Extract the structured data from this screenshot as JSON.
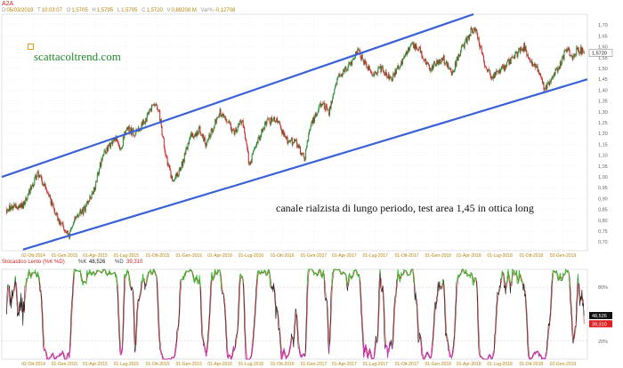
{
  "header": {
    "ticker": "A2A",
    "fields": [
      {
        "key": "D",
        "value": "05/03/2019"
      },
      {
        "key": "T",
        "value": "10:03:07"
      },
      {
        "key": "O",
        "value": "1,5705"
      },
      {
        "key": "H",
        "value": "1,5795"
      },
      {
        "key": "L",
        "value": "1,5705"
      },
      {
        "key": "C",
        "value": "1,5720"
      },
      {
        "key": "V",
        "value": "0,88208 M"
      },
      {
        "key": "Var%",
        "value": "-0,12708"
      }
    ]
  },
  "watermark": "scattacoltrend.com",
  "annotation": "canale rialzista di lungo periodo, test area 1,45 in ottica long",
  "colors": {
    "channel": "#3a62d6",
    "candle_up": "#1e8a2e",
    "candle_down": "#cc2222",
    "osc_k": "#111111",
    "osc_d": "#d22020",
    "osc_overbought": "#22cc22",
    "osc_oversold": "#cc22cc",
    "price_tag": "#ffffff",
    "k_tag": "#111111",
    "d_tag": "#dd2222"
  },
  "chart_data": [
    {
      "type": "line",
      "subtype": "candlestick",
      "ylim": [
        0.66,
        1.75
      ],
      "y_ticks": [
        "1,70",
        "1,65",
        "1,60",
        "1,55",
        "1,50",
        "1,45",
        "1,40",
        "1,35",
        "1,30",
        "1,25",
        "1,20",
        "1,15",
        "1,10",
        "1,05",
        "1,00",
        "0,95",
        "0,90",
        "0,85",
        "0,80",
        "0,75",
        "0,70"
      ],
      "x_ticks": [
        "02-Ott-2014",
        "01-Gen-2015",
        "01-Apr-2015",
        "01-Lug-2015",
        "01-Ott-2015",
        "01-Gen-2016",
        "01-Apr-2016",
        "01-Lug-2016",
        "01-Ott-2016",
        "01-Gen-2017",
        "01-Apr-2017",
        "01-Lug-2017",
        "01-Ott-2017",
        "01-Gen-2018",
        "01-Apr-2018",
        "01-Lug-2018",
        "01-Ott-2018",
        "02-Gen-2019"
      ],
      "price_path": [
        {
          "date": "2014-07-15",
          "value": 0.85
        },
        {
          "date": "2014-09-01",
          "value": 0.87
        },
        {
          "date": "2014-10-15",
          "value": 1.02
        },
        {
          "date": "2014-11-05",
          "value": 0.95
        },
        {
          "date": "2014-12-15",
          "value": 0.8
        },
        {
          "date": "2015-01-15",
          "value": 0.72
        },
        {
          "date": "2015-02-01",
          "value": 0.82
        },
        {
          "date": "2015-03-01",
          "value": 0.85
        },
        {
          "date": "2015-04-01",
          "value": 0.96
        },
        {
          "date": "2015-04-20",
          "value": 1.08
        },
        {
          "date": "2015-05-15",
          "value": 1.15
        },
        {
          "date": "2015-06-01",
          "value": 1.18
        },
        {
          "date": "2015-06-15",
          "value": 1.13
        },
        {
          "date": "2015-07-01",
          "value": 1.22
        },
        {
          "date": "2015-08-01",
          "value": 1.2
        },
        {
          "date": "2015-09-01",
          "value": 1.28
        },
        {
          "date": "2015-09-20",
          "value": 1.34
        },
        {
          "date": "2015-10-05",
          "value": 1.3
        },
        {
          "date": "2015-10-25",
          "value": 1.1
        },
        {
          "date": "2015-11-15",
          "value": 0.97
        },
        {
          "date": "2015-12-10",
          "value": 1.05
        },
        {
          "date": "2016-01-05",
          "value": 1.18
        },
        {
          "date": "2016-02-01",
          "value": 1.22
        },
        {
          "date": "2016-02-20",
          "value": 1.15
        },
        {
          "date": "2016-03-10",
          "value": 1.22
        },
        {
          "date": "2016-04-01",
          "value": 1.3
        },
        {
          "date": "2016-04-25",
          "value": 1.25
        },
        {
          "date": "2016-05-15",
          "value": 1.2
        },
        {
          "date": "2016-06-05",
          "value": 1.27
        },
        {
          "date": "2016-06-27",
          "value": 1.05
        },
        {
          "date": "2016-07-15",
          "value": 1.15
        },
        {
          "date": "2016-08-15",
          "value": 1.25
        },
        {
          "date": "2016-09-15",
          "value": 1.27
        },
        {
          "date": "2016-10-10",
          "value": 1.17
        },
        {
          "date": "2016-11-10",
          "value": 1.16
        },
        {
          "date": "2016-12-05",
          "value": 1.08
        },
        {
          "date": "2016-12-20",
          "value": 1.22
        },
        {
          "date": "2017-01-10",
          "value": 1.3
        },
        {
          "date": "2017-01-25",
          "value": 1.34
        },
        {
          "date": "2017-02-15",
          "value": 1.3
        },
        {
          "date": "2017-03-10",
          "value": 1.45
        },
        {
          "date": "2017-04-10",
          "value": 1.5
        },
        {
          "date": "2017-05-10",
          "value": 1.58
        },
        {
          "date": "2017-06-01",
          "value": 1.52
        },
        {
          "date": "2017-06-25",
          "value": 1.47
        },
        {
          "date": "2017-07-20",
          "value": 1.5
        },
        {
          "date": "2017-08-15",
          "value": 1.45
        },
        {
          "date": "2017-09-15",
          "value": 1.52
        },
        {
          "date": "2017-10-15",
          "value": 1.62
        },
        {
          "date": "2017-11-10",
          "value": 1.58
        },
        {
          "date": "2017-12-05",
          "value": 1.5
        },
        {
          "date": "2017-12-25",
          "value": 1.52
        },
        {
          "date": "2018-01-15",
          "value": 1.55
        },
        {
          "date": "2018-02-10",
          "value": 1.48
        },
        {
          "date": "2018-03-10",
          "value": 1.58
        },
        {
          "date": "2018-04-10",
          "value": 1.68
        },
        {
          "date": "2018-04-25",
          "value": 1.66
        },
        {
          "date": "2018-05-20",
          "value": 1.5
        },
        {
          "date": "2018-06-10",
          "value": 1.46
        },
        {
          "date": "2018-07-10",
          "value": 1.5
        },
        {
          "date": "2018-08-10",
          "value": 1.55
        },
        {
          "date": "2018-09-10",
          "value": 1.6
        },
        {
          "date": "2018-10-01",
          "value": 1.52
        },
        {
          "date": "2018-10-20",
          "value": 1.5
        },
        {
          "date": "2018-11-10",
          "value": 1.4
        },
        {
          "date": "2018-12-05",
          "value": 1.47
        },
        {
          "date": "2018-12-25",
          "value": 1.52
        },
        {
          "date": "2019-01-15",
          "value": 1.6
        },
        {
          "date": "2019-01-28",
          "value": 1.55
        },
        {
          "date": "2019-02-15",
          "value": 1.59
        },
        {
          "date": "2019-03-05",
          "value": 1.572
        }
      ],
      "channel_upper": [
        {
          "date": "2014-07-01",
          "value": 1.0
        },
        {
          "date": "2018-04-15",
          "value": 1.75
        }
      ],
      "channel_lower": [
        {
          "date": "2014-09-01",
          "value": 0.665
        },
        {
          "date": "2019-03-15",
          "value": 1.45
        }
      ],
      "last_price": "1,5720"
    },
    {
      "type": "line",
      "title": "Stocastico Lento (%K %D)",
      "series": [
        {
          "name": "%K",
          "value": "48,526"
        },
        {
          "name": "%D",
          "value": "39,310"
        }
      ],
      "ylim": [
        0,
        100
      ],
      "y_ticks": [
        "80%",
        "20%"
      ],
      "x_ticks": [
        "02-Ott-2014",
        "01-Gen-2015",
        "01-Apr-2015",
        "01-Lug-2015",
        "01-Ott-2015",
        "01-Gen-2016",
        "01-Apr-2016",
        "01-Lug-2016",
        "01-Ott-2016",
        "01-Gen-2017",
        "01-Apr-2017",
        "01-Lug-2017",
        "01-Ott-2017",
        "01-Gen-2018",
        "01-Apr-2018",
        "01-Lug-2018",
        "01-Ott-2018",
        "02-Gen-2019"
      ]
    }
  ]
}
